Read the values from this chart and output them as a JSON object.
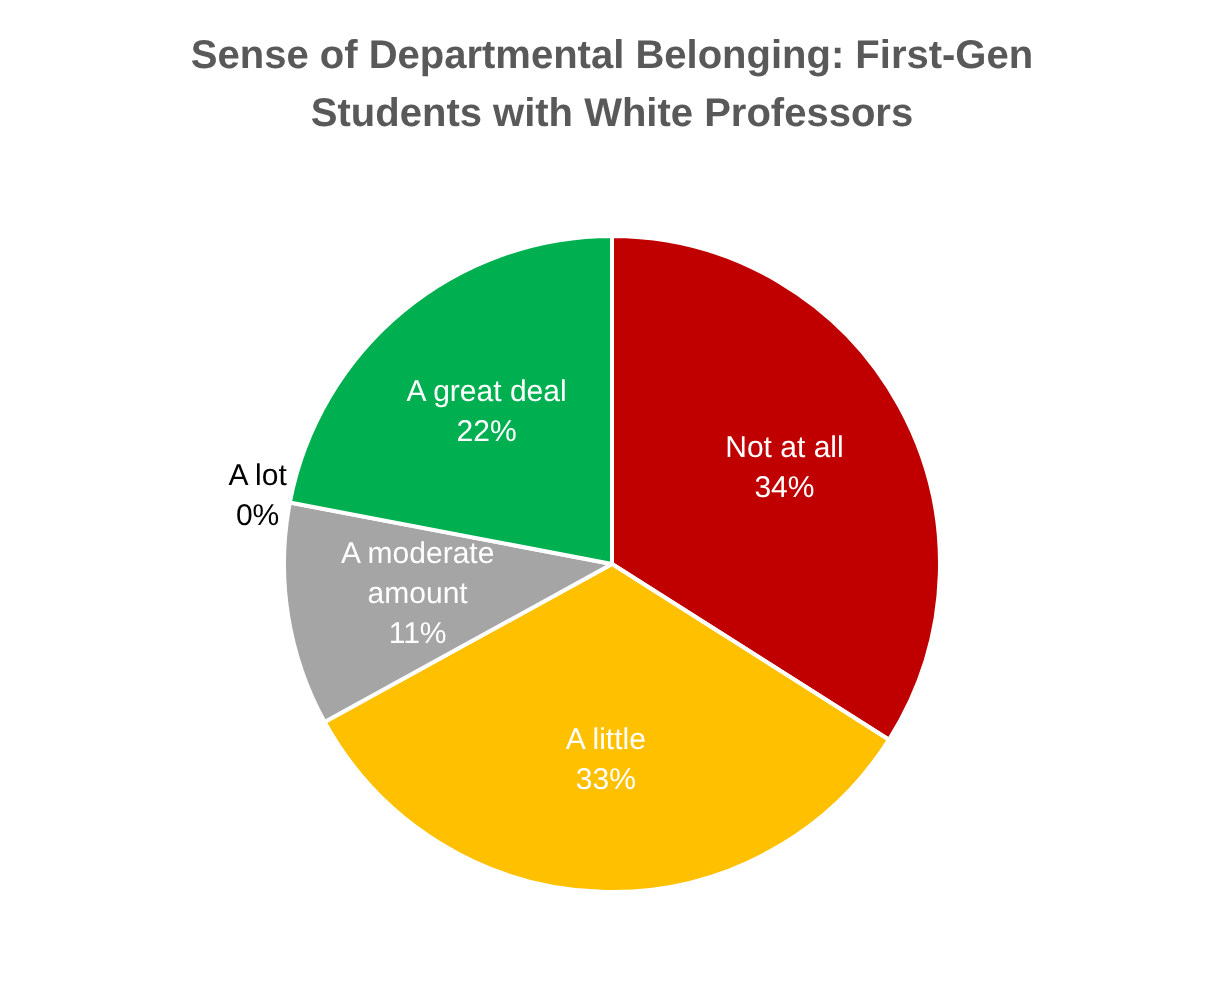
{
  "chart_data": {
    "type": "pie",
    "title": "Sense of Departmental Belonging: First-Gen Students with White Professors",
    "categories": [
      "Not at all",
      "A little",
      "A moderate amount",
      "A lot",
      "A great deal"
    ],
    "values": [
      34,
      33,
      11,
      0,
      22
    ],
    "value_labels": [
      "34%",
      "33%",
      "11%",
      "0%",
      "22%"
    ],
    "colors": [
      "#c00000",
      "#ffc000",
      "#a5a5a5",
      "#5b9bd5",
      "#00b050"
    ],
    "legend": false
  }
}
